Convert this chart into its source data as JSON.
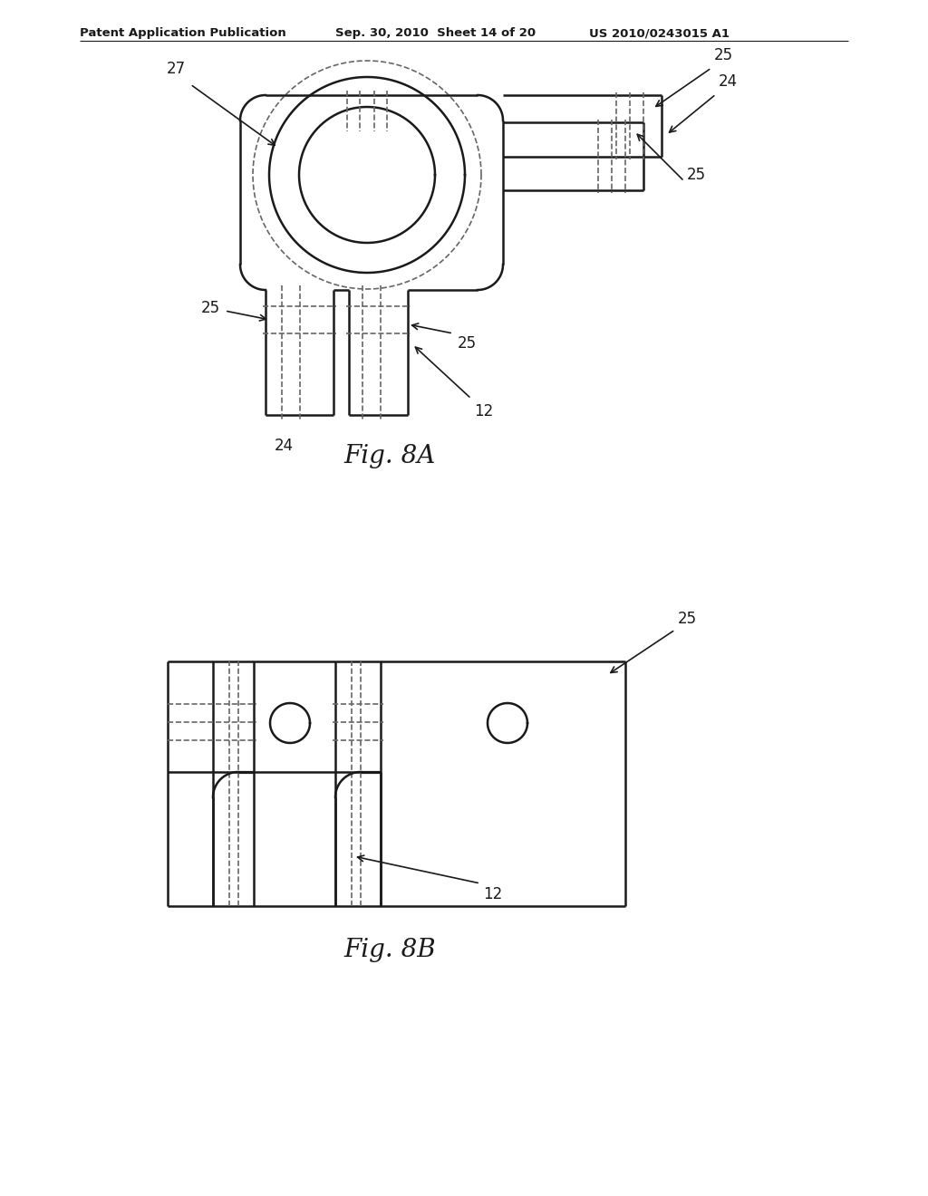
{
  "bg_color": "#ffffff",
  "line_color": "#1a1a1a",
  "dashed_color": "#666666",
  "header_left": "Patent Application Publication",
  "header_mid": "Sep. 30, 2010  Sheet 14 of 20",
  "header_right": "US 2010/0243015 A1",
  "fig8a_label": "Fig. 8A",
  "fig8b_label": "Fig. 8B"
}
